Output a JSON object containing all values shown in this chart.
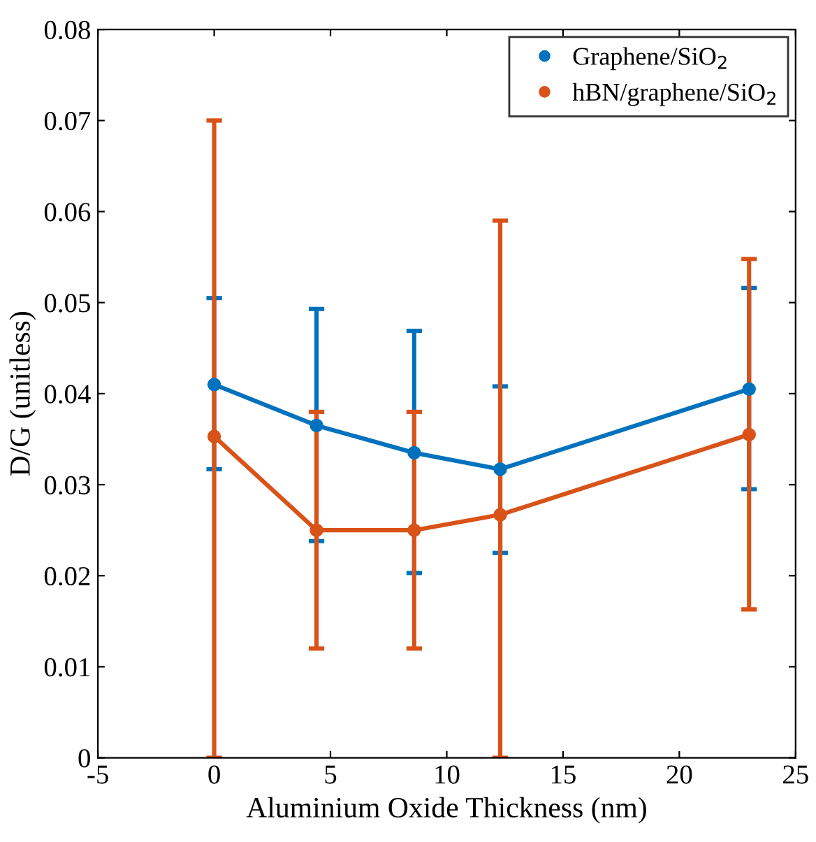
{
  "chart_data": {
    "type": "line",
    "xlabel": "Aluminium Oxide Thickness (nm)",
    "ylabel": "D/G (unitless)",
    "x": [
      0,
      4.4,
      8.6,
      12.3,
      23
    ],
    "series": [
      {
        "name": "Graphene/SiO$_{2}$",
        "color": "#0072bd",
        "values": [
          0.041,
          0.0365,
          0.0335,
          0.0317,
          0.0405
        ],
        "errors": [
          [
            0.0317,
            0.0505
          ],
          [
            0.0238,
            0.0493
          ],
          [
            0.0203,
            0.0469
          ],
          [
            0.0225,
            0.0408
          ],
          [
            0.0295,
            0.0516
          ]
        ]
      },
      {
        "name": "hBN/graphene/SiO$_{2}$",
        "color": "#d95319",
        "values": [
          0.0353,
          0.025,
          0.025,
          0.0267,
          0.0355
        ],
        "errors": [
          [
            0,
            0.07
          ],
          [
            0.012,
            0.038
          ],
          [
            0.012,
            0.038
          ],
          [
            0,
            0.059
          ],
          [
            0.0163,
            0.0548
          ]
        ]
      }
    ],
    "xlim": [
      -5,
      25
    ],
    "xticks": [
      -5,
      0,
      5,
      10,
      15,
      20,
      25
    ],
    "ylim": [
      0,
      0.08
    ],
    "yticks": [
      0,
      0.01,
      0.02,
      0.03,
      0.04,
      0.05,
      0.06,
      0.07,
      0.08
    ],
    "grid": false,
    "legend": "top right",
    "marker": "circle",
    "line_style": "solid"
  }
}
